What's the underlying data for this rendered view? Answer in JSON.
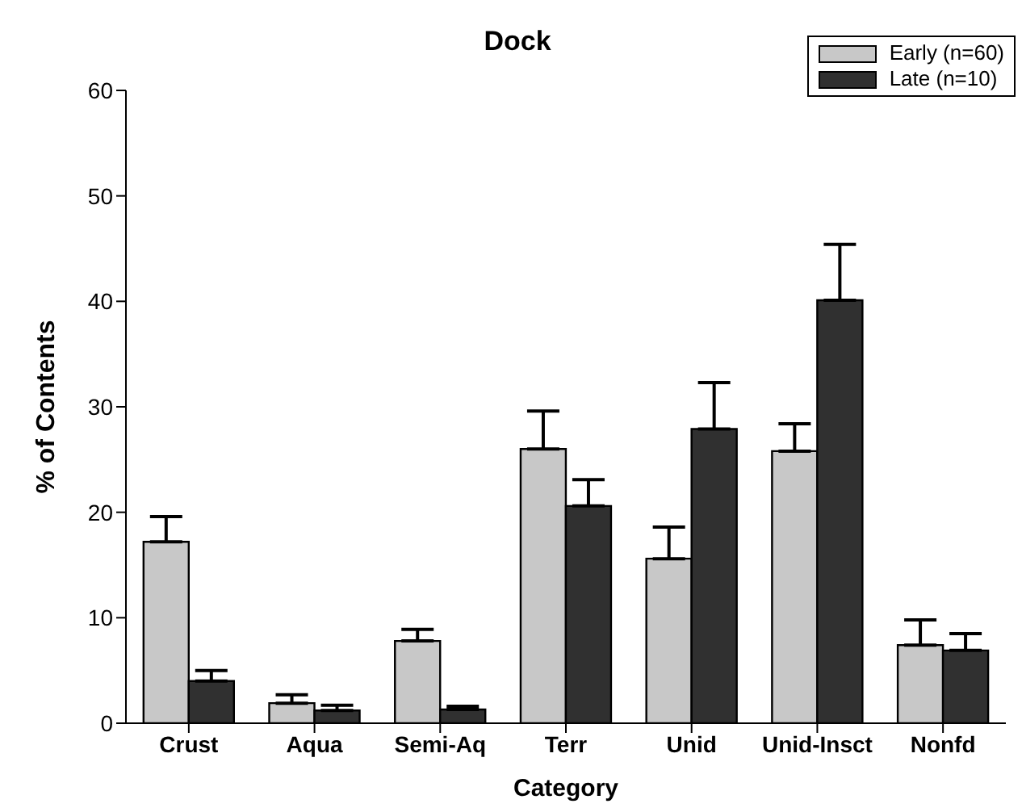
{
  "chart_data": {
    "type": "bar",
    "title": "Dock",
    "xlabel": "Category",
    "ylabel": "% of Contents",
    "categories": [
      "Crust",
      "Aqua",
      "Semi-Aq",
      "Terr",
      "Unid",
      "Unid-Insct",
      "Nonfd"
    ],
    "series": [
      {
        "name": "Early (n=60)",
        "color": "#c8c8c8",
        "values": [
          17.2,
          1.9,
          7.8,
          26.0,
          15.6,
          25.8,
          7.4
        ],
        "errors": [
          [
            17.2,
            19.6
          ],
          [
            1.9,
            2.7
          ],
          [
            7.8,
            8.9
          ],
          [
            26.0,
            29.6
          ],
          [
            15.6,
            18.6
          ],
          [
            25.8,
            28.4
          ],
          [
            7.4,
            9.8
          ]
        ]
      },
      {
        "name": "Late (n=10)",
        "color": "#303030",
        "values": [
          4.0,
          1.2,
          1.3,
          20.6,
          27.9,
          40.1,
          6.9
        ],
        "errors": [
          [
            4.0,
            5.0
          ],
          [
            1.2,
            1.7
          ],
          [
            1.3,
            1.6
          ],
          [
            20.6,
            23.1
          ],
          [
            27.9,
            32.3
          ],
          [
            40.1,
            45.4
          ],
          [
            6.9,
            8.5
          ]
        ]
      }
    ],
    "ylim": [
      0,
      60
    ],
    "yticks": [
      0,
      10,
      20,
      30,
      40,
      50,
      60
    ],
    "grid": false,
    "legend": "top right"
  }
}
